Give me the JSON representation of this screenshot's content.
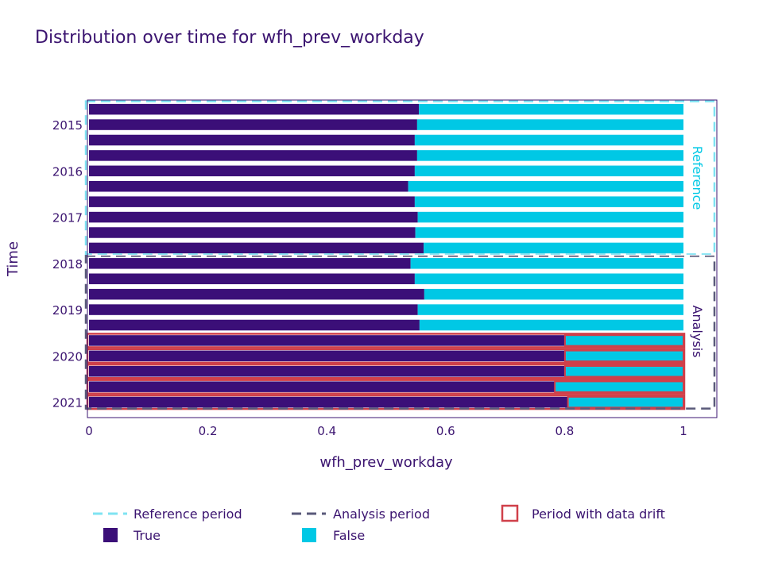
{
  "chart_data": {
    "type": "bar",
    "orientation": "horizontal",
    "stacked": true,
    "title": "Distribution over time for wfh_prev_workday",
    "xlabel": "wfh_prev_workday",
    "ylabel": "Time",
    "xlim": [
      0,
      1
    ],
    "x_ticks": [
      "0",
      "0.2",
      "0.4",
      "0.6",
      "0.8",
      "1"
    ],
    "x_tick_values": [
      0,
      0.2,
      0.4,
      0.6,
      0.8,
      1
    ],
    "y_ticks": [
      "2015",
      "2016",
      "2017",
      "2018",
      "2019",
      "2020",
      "2021"
    ],
    "y_tick_values": [
      1,
      4,
      7,
      10,
      13,
      16,
      19
    ],
    "y_range": [
      -0.6,
      20.0
    ],
    "periods": [
      {
        "label": "Reference",
        "start": 0,
        "end": 9
      },
      {
        "label": "Analysis",
        "start": 10,
        "end": 19
      }
    ],
    "series": [
      {
        "name": "True",
        "color": "#3b0f78",
        "values": [
          0.555,
          0.552,
          0.548,
          0.552,
          0.548,
          0.537,
          0.548,
          0.553,
          0.549,
          0.563,
          0.541,
          0.548,
          0.564,
          0.553,
          0.556,
          0.802,
          0.802,
          0.802,
          0.785,
          0.807
        ]
      },
      {
        "name": "False",
        "color": "#00c8e5",
        "values": [
          0.445,
          0.448,
          0.452,
          0.448,
          0.452,
          0.463,
          0.452,
          0.447,
          0.451,
          0.437,
          0.459,
          0.452,
          0.436,
          0.447,
          0.444,
          0.198,
          0.198,
          0.198,
          0.215,
          0.193
        ]
      }
    ],
    "drift": [
      false,
      false,
      false,
      false,
      false,
      false,
      false,
      false,
      false,
      false,
      false,
      false,
      false,
      false,
      false,
      true,
      true,
      true,
      true,
      true
    ]
  },
  "legend": {
    "reference_period": "Reference period",
    "analysis_period": "Analysis period",
    "data_drift": "Period with data drift",
    "true_label": "True",
    "false_label": "False"
  },
  "colors": {
    "true": "#3b0f78",
    "false": "#00c8e5",
    "reference": "#7fe3f2",
    "analysis": "#5a5a7a",
    "drift": "#d0404a",
    "text": "#3b1470"
  }
}
